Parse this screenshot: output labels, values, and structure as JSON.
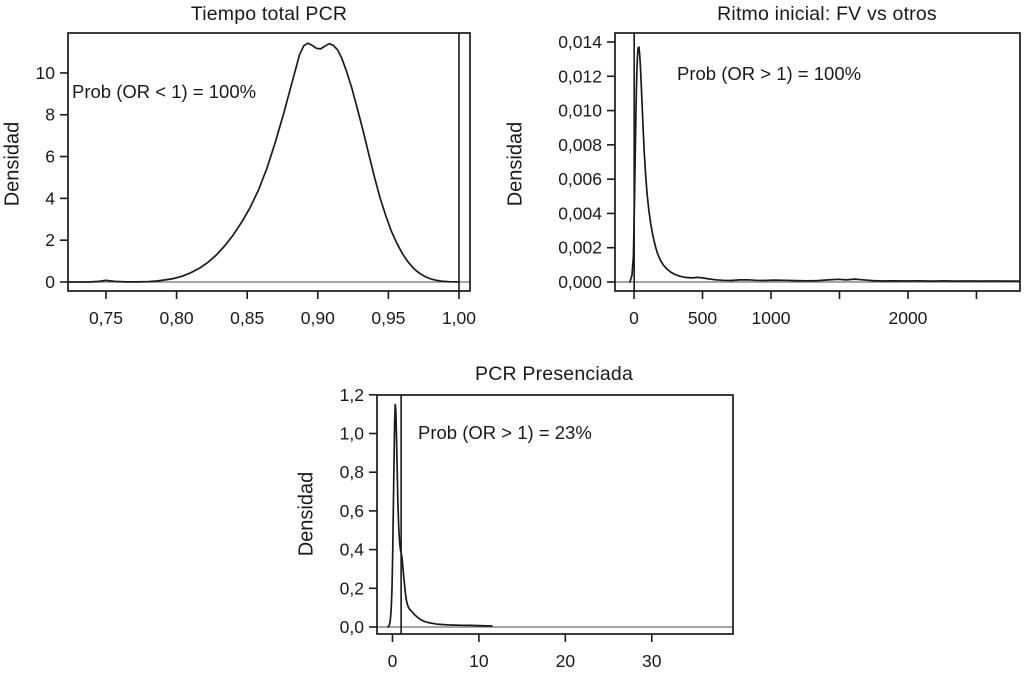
{
  "figure": {
    "description": "Three posterior density plots of odds ratios",
    "background": "#ffffff",
    "colors": {
      "curve": "#1a1a1a",
      "frame": "#1a1a1a",
      "tick": "#1a1a1a",
      "reference_vline": "#1a1a1a",
      "zero_hline": "#6e6e6e",
      "text": "#1a1a1a"
    }
  },
  "chart_data": [
    {
      "type": "line",
      "title": "Tiempo total PCR",
      "xlabel": "",
      "ylabel": "Densidad",
      "annotation": "Prob (OR < 1) = 100%",
      "legend": null,
      "grid": false,
      "xlim": [
        0.7231,
        1.0078
      ],
      "ylim": [
        -0.43,
        11.91
      ],
      "x_ticks": {
        "values": [
          0.75,
          0.8,
          0.85,
          0.9,
          0.95,
          1.0
        ],
        "labels": [
          "0,75",
          "0,80",
          "0,85",
          "0,90",
          "0,95",
          "1,00"
        ]
      },
      "y_ticks": {
        "values": [
          0,
          2,
          4,
          6,
          8,
          10
        ],
        "labels": [
          "0",
          "2",
          "4",
          "6",
          "8",
          "10"
        ]
      },
      "reference_vline_x": 1.0,
      "zero_hline": true,
      "series": [
        {
          "name": "posterior-density",
          "points": [
            [
              0.724,
              0
            ],
            [
              0.738,
              0
            ],
            [
              0.745,
              0.03
            ],
            [
              0.75,
              0.08
            ],
            [
              0.756,
              0.03
            ],
            [
              0.764,
              0.005
            ],
            [
              0.772,
              0.005
            ],
            [
              0.78,
              0.02
            ],
            [
              0.786,
              0.05
            ],
            [
              0.792,
              0.1
            ],
            [
              0.798,
              0.17
            ],
            [
              0.804,
              0.28
            ],
            [
              0.81,
              0.44
            ],
            [
              0.816,
              0.65
            ],
            [
              0.822,
              0.93
            ],
            [
              0.828,
              1.28
            ],
            [
              0.834,
              1.72
            ],
            [
              0.84,
              2.24
            ],
            [
              0.846,
              2.85
            ],
            [
              0.852,
              3.55
            ],
            [
              0.858,
              4.4
            ],
            [
              0.864,
              5.45
            ],
            [
              0.87,
              6.7
            ],
            [
              0.876,
              8.1
            ],
            [
              0.88,
              9.1
            ],
            [
              0.884,
              10.1
            ],
            [
              0.887,
              10.85
            ],
            [
              0.89,
              11.3
            ],
            [
              0.893,
              11.42
            ],
            [
              0.896,
              11.32
            ],
            [
              0.899,
              11.18
            ],
            [
              0.902,
              11.15
            ],
            [
              0.905,
              11.28
            ],
            [
              0.908,
              11.4
            ],
            [
              0.911,
              11.32
            ],
            [
              0.914,
              11.1
            ],
            [
              0.917,
              10.7
            ],
            [
              0.92,
              10.15
            ],
            [
              0.924,
              9.3
            ],
            [
              0.928,
              8.3
            ],
            [
              0.932,
              7.25
            ],
            [
              0.936,
              6.15
            ],
            [
              0.94,
              5.05
            ],
            [
              0.944,
              4.05
            ],
            [
              0.948,
              3.2
            ],
            [
              0.952,
              2.45
            ],
            [
              0.956,
              1.85
            ],
            [
              0.96,
              1.35
            ],
            [
              0.964,
              0.95
            ],
            [
              0.968,
              0.64
            ],
            [
              0.972,
              0.42
            ],
            [
              0.976,
              0.26
            ],
            [
              0.98,
              0.15
            ],
            [
              0.984,
              0.08
            ],
            [
              0.988,
              0.04
            ],
            [
              0.993,
              0.015
            ],
            [
              1.0,
              0.005
            ]
          ]
        }
      ]
    },
    {
      "type": "line",
      "title": "Ritmo inicial: FV vs otros",
      "xlabel": "",
      "ylabel": "Densidad",
      "annotation": "Prob (OR > 1) = 100%",
      "legend": null,
      "grid": false,
      "xlim": [
        -139,
        2818
      ],
      "ylim": [
        -0.000525,
        0.014525
      ],
      "x_ticks": {
        "values": [
          0,
          500,
          1000,
          1500,
          2000,
          2500
        ],
        "labels": [
          "0",
          "500",
          "1000",
          "",
          "2000",
          ""
        ]
      },
      "y_ticks": {
        "values": [
          0.0,
          0.002,
          0.004,
          0.006,
          0.008,
          0.01,
          0.012,
          0.014
        ],
        "labels": [
          "0,000",
          "0,002",
          "0,004",
          "0,006",
          "0,008",
          "0,010",
          "0,012",
          "0,014"
        ]
      },
      "reference_vline_x": 1,
      "zero_hline": true,
      "series": [
        {
          "name": "posterior-density",
          "points": [
            [
              -30,
              0
            ],
            [
              -15,
              0.0004
            ],
            [
              -5,
              0.0015
            ],
            [
              0,
              0.0032
            ],
            [
              5,
              0.0055
            ],
            [
              10,
              0.008
            ],
            [
              15,
              0.0104
            ],
            [
              20,
              0.0122
            ],
            [
              25,
              0.0132
            ],
            [
              30,
              0.01365
            ],
            [
              36,
              0.0137
            ],
            [
              43,
              0.0131
            ],
            [
              50,
              0.012
            ],
            [
              58,
              0.0105
            ],
            [
              66,
              0.009
            ],
            [
              75,
              0.0075
            ],
            [
              85,
              0.0062
            ],
            [
              95,
              0.0052
            ],
            [
              108,
              0.0042
            ],
            [
              122,
              0.0034
            ],
            [
              138,
              0.0027
            ],
            [
              155,
              0.0021
            ],
            [
              172,
              0.00165
            ],
            [
              192,
              0.00128
            ],
            [
              215,
              0.00098
            ],
            [
              240,
              0.00076
            ],
            [
              268,
              0.00058
            ],
            [
              300,
              0.00044
            ],
            [
              335,
              0.00034
            ],
            [
              375,
              0.00027
            ],
            [
              420,
              0.00024
            ],
            [
              465,
              0.00027
            ],
            [
              500,
              0.00024
            ],
            [
              545,
              0.00018
            ],
            [
              595,
              0.00013
            ],
            [
              650,
              0.0001
            ],
            [
              710,
              9e-05
            ],
            [
              770,
              0.00012
            ],
            [
              830,
              0.00013
            ],
            [
              890,
              0.0001
            ],
            [
              950,
              9e-05
            ],
            [
              1020,
              0.00011
            ],
            [
              1100,
              0.0001
            ],
            [
              1180,
              8e-05
            ],
            [
              1260,
              7e-05
            ],
            [
              1340,
              8e-05
            ],
            [
              1420,
              0.00012
            ],
            [
              1490,
              0.00016
            ],
            [
              1550,
              0.00012
            ],
            [
              1610,
              0.00017
            ],
            [
              1670,
              0.00013
            ],
            [
              1740,
              8e-05
            ],
            [
              1820,
              6e-05
            ],
            [
              1900,
              7e-05
            ],
            [
              1990,
              6e-05
            ],
            [
              2080,
              7e-05
            ],
            [
              2170,
              5e-05
            ],
            [
              2260,
              7e-05
            ],
            [
              2350,
              5e-05
            ],
            [
              2440,
              6e-05
            ],
            [
              2530,
              5e-05
            ],
            [
              2620,
              6e-05
            ],
            [
              2710,
              5e-05
            ],
            [
              2817,
              5e-05
            ]
          ]
        }
      ]
    },
    {
      "type": "line",
      "title": "PCR Presenciada",
      "xlabel": "",
      "ylabel": "Densidad",
      "annotation": "Prob (OR > 1) = 23%",
      "legend": null,
      "grid": false,
      "xlim": [
        -1.79,
        39.4
      ],
      "ylim": [
        -0.0362,
        1.199
      ],
      "x_ticks": {
        "values": [
          0,
          10,
          20,
          30
        ],
        "labels": [
          "0",
          "10",
          "20",
          "30"
        ]
      },
      "y_ticks": {
        "values": [
          0.0,
          0.2,
          0.4,
          0.6,
          0.8,
          1.0,
          1.2
        ],
        "labels": [
          "0,0",
          "0,2",
          "0,4",
          "0,6",
          "0,8",
          "1,0",
          "1,2"
        ]
      },
      "reference_vline_x": 1,
      "zero_hline": true,
      "series": [
        {
          "name": "posterior-density",
          "points": [
            [
              -0.5,
              0
            ],
            [
              -0.38,
              0.008
            ],
            [
              -0.26,
              0.03
            ],
            [
              -0.15,
              0.09
            ],
            [
              -0.05,
              0.2
            ],
            [
              0.03,
              0.38
            ],
            [
              0.1,
              0.6
            ],
            [
              0.18,
              0.85
            ],
            [
              0.25,
              1.05
            ],
            [
              0.31,
              1.15
            ],
            [
              0.38,
              1.12
            ],
            [
              0.45,
              1.0
            ],
            [
              0.53,
              0.84
            ],
            [
              0.62,
              0.66
            ],
            [
              0.72,
              0.52
            ],
            [
              0.82,
              0.44
            ],
            [
              0.92,
              0.4
            ],
            [
              1.02,
              0.38
            ],
            [
              1.12,
              0.35
            ],
            [
              1.22,
              0.3
            ],
            [
              1.34,
              0.24
            ],
            [
              1.48,
              0.18
            ],
            [
              1.62,
              0.135
            ],
            [
              1.78,
              0.108
            ],
            [
              1.95,
              0.094
            ],
            [
              2.15,
              0.084
            ],
            [
              2.4,
              0.072
            ],
            [
              2.65,
              0.06
            ],
            [
              2.95,
              0.048
            ],
            [
              3.3,
              0.037
            ],
            [
              3.7,
              0.029
            ],
            [
              4.1,
              0.023
            ],
            [
              4.6,
              0.019
            ],
            [
              5.1,
              0.015
            ],
            [
              5.7,
              0.013
            ],
            [
              6.4,
              0.011
            ],
            [
              7.2,
              0.01
            ],
            [
              8.1,
              0.009
            ],
            [
              9.0,
              0.008
            ],
            [
              10.0,
              0.007
            ],
            [
              10.8,
              0.006
            ],
            [
              11.5,
              0.005
            ]
          ]
        }
      ]
    }
  ]
}
